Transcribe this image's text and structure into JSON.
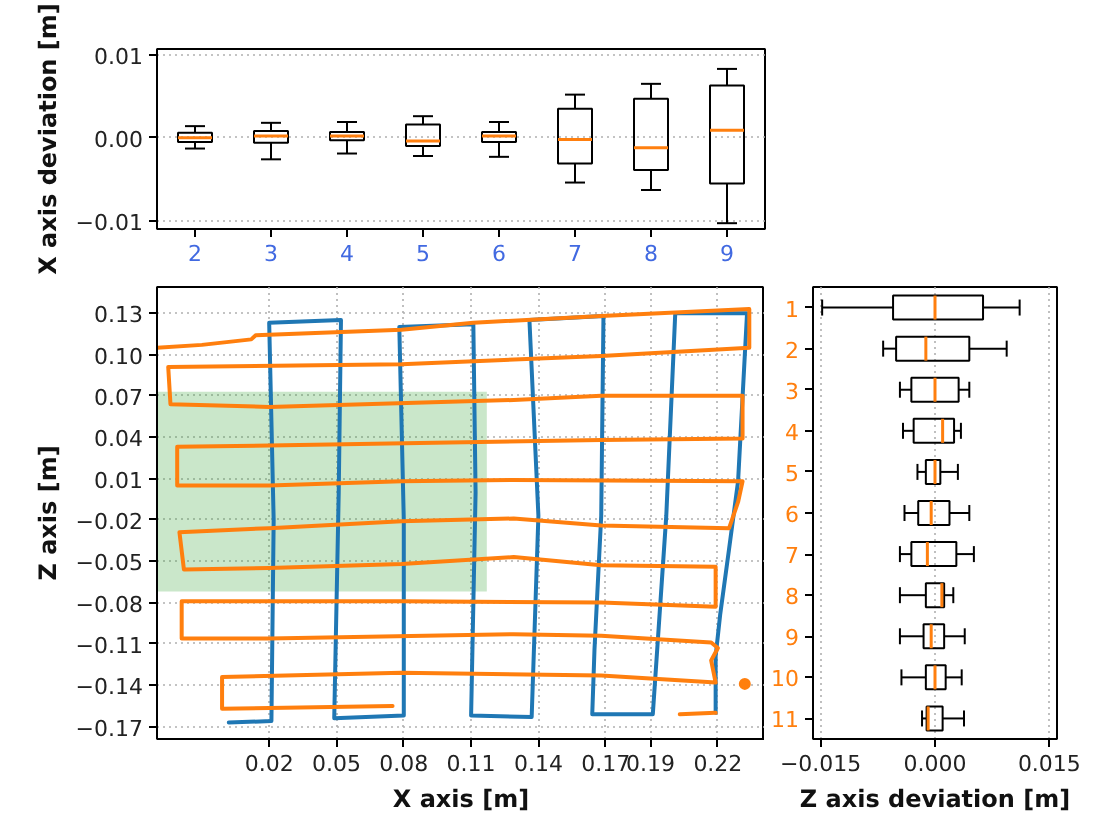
{
  "chart_data": [
    {
      "type": "box",
      "ylabel": "X axis deviation [m]",
      "color": "#000000",
      "categories": [
        "2",
        "3",
        "4",
        "5",
        "6",
        "7",
        "8",
        "9"
      ],
      "boxes": [
        {
          "low": -0.0013,
          "q1": -0.0005,
          "median": 0.0,
          "q3": 0.0006,
          "high": 0.0014
        },
        {
          "low": -0.0026,
          "q1": -0.0006,
          "median": 0.0002,
          "q3": 0.0008,
          "high": 0.0018
        },
        {
          "low": -0.0019,
          "q1": -0.0003,
          "median": 0.0002,
          "q3": 0.0007,
          "high": 0.0019
        },
        {
          "low": -0.0022,
          "q1": -0.001,
          "median": -0.0004,
          "q3": 0.0016,
          "high": 0.0026
        },
        {
          "low": -0.0023,
          "q1": -0.0005,
          "median": 0.0002,
          "q3": 0.0007,
          "high": 0.0019
        },
        {
          "low": -0.0054,
          "q1": -0.0031,
          "median": -0.0002,
          "q3": 0.0035,
          "high": 0.0052
        },
        {
          "low": -0.0063,
          "q1": -0.0039,
          "median": -0.0012,
          "q3": 0.0047,
          "high": 0.0065
        },
        {
          "low": -0.0103,
          "q1": -0.0055,
          "median": 0.0009,
          "q3": 0.0063,
          "high": 0.0083
        }
      ],
      "ylim": [
        -0.011,
        0.0107
      ],
      "yticks": [
        0.01,
        {
          "value": 0,
          "label": "0.00"
        },
        {
          "value": -0.01,
          "label": "−0.01"
        }
      ],
      "grid": "y"
    },
    {
      "type": "line",
      "xlabel": "X axis [m]",
      "ylabel": "Z axis [m]",
      "series": [
        {
          "color": "#1f77b4",
          "x": [
            0.002,
            0.021,
            0.022,
            0.02,
            0.052,
            0.051,
            0.049,
            0.08,
            0.08,
            0.078,
            0.111,
            0.112,
            0.11,
            0.137,
            0.14,
            0.136,
            0.169,
            0.168,
            0.165,
            0.164,
            0.191,
            0.197,
            0.201,
            0.233,
            0.229,
            0.225,
            0.221,
            0.219,
            0.219
          ],
          "values": [
            -0.167,
            -0.166,
            -0.02,
            0.123,
            0.125,
            0.0,
            -0.164,
            -0.162,
            -0.02,
            0.12,
            0.122,
            0.0,
            -0.162,
            -0.163,
            -0.017,
            0.125,
            0.128,
            -0.017,
            -0.114,
            -0.161,
            -0.161,
            -0.017,
            0.13,
            0.13,
            0.008,
            -0.041,
            -0.089,
            -0.119,
            -0.16
          ]
        },
        {
          "color": "#ff7f0e",
          "x": [
            -0.03,
            -0.01,
            0.012,
            0.014,
            0.079,
            0.111,
            0.168,
            0.234,
            0.234,
            0.168,
            0.079,
            -0.025,
            -0.024,
            0.02,
            0.129,
            0.168,
            0.231,
            0.231,
            0.168,
            0.02,
            -0.021,
            -0.021,
            0.02,
            0.079,
            0.129,
            0.231,
            0.229,
            0.225,
            0.168,
            0.129,
            0.079,
            0.02,
            -0.02,
            -0.018,
            0.02,
            0.079,
            0.129,
            0.168,
            0.219,
            0.219,
            0.168,
            0.079,
            -0.019,
            -0.019,
            0.02,
            0.129,
            0.168,
            0.217,
            0.22,
            0.217,
            0.219,
            0.168,
            0.079,
            -0.001,
            -0.001,
            0.075,
            0.138,
            0.203,
            0.219
          ],
          "values": [
            0.105,
            0.107,
            0.111,
            0.114,
            0.118,
            0.123,
            0.128,
            0.133,
            0.105,
            0.099,
            0.093,
            0.091,
            0.064,
            0.062,
            0.067,
            0.07,
            0.07,
            0.039,
            0.038,
            0.034,
            0.033,
            0.005,
            0.005,
            0.008,
            0.009,
            0.008,
            -0.007,
            -0.026,
            -0.024,
            -0.019,
            -0.021,
            -0.026,
            -0.029,
            -0.056,
            -0.055,
            -0.052,
            -0.047,
            -0.053,
            -0.054,
            -0.083,
            -0.08,
            -0.079,
            -0.079,
            -0.106,
            -0.106,
            -0.103,
            -0.104,
            -0.109,
            -0.113,
            -0.122,
            -0.138,
            -0.133,
            -0.131,
            -0.134,
            -0.157,
            -0.155,
            null,
            -0.161,
            -0.16
          ]
        },
        {
          "type": "scatter",
          "color": "#ff7f0e",
          "x": [
            0.232
          ],
          "values": [
            -0.139
          ]
        },
        {
          "type": "bar",
          "color": "#2ca02c",
          "x": [
            0.0435
          ],
          "base": [
            -0.072
          ],
          "values": [
            0.145
          ]
        }
      ],
      "xlim": [
        -0.03,
        0.241
      ],
      "xticks": [
        0.02,
        0.05,
        0.08,
        0.11,
        0.14,
        0.17,
        0.19,
        0.22
      ],
      "ylim": [
        -0.179,
        0.149
      ],
      "yticks": [
        0.13,
        {
          "value": 0.1,
          "label": "0.10"
        },
        0.07,
        0.04,
        0.01,
        {
          "value": -0.02,
          "label": "−0.02"
        },
        {
          "value": -0.05,
          "label": "−0.05"
        },
        {
          "value": -0.08,
          "label": "−0.08"
        },
        {
          "value": -0.11,
          "label": "−0.11"
        },
        {
          "value": -0.14,
          "label": "−0.14"
        },
        {
          "value": -0.17,
          "label": "−0.17"
        }
      ],
      "grid": true
    },
    {
      "type": "box",
      "orientation": "horizontal",
      "xlabel": "Z axis deviation [m]",
      "color": "#000000",
      "categories": [
        "1",
        "2",
        "3",
        "4",
        "5",
        "6",
        "7",
        "8",
        "9",
        "10",
        "11"
      ],
      "boxes": [
        {
          "low": -0.0148,
          "q1": -0.0055,
          "median": 0.0,
          "q3": 0.0063,
          "high": 0.0111
        },
        {
          "low": -0.0068,
          "q1": -0.0051,
          "median": -0.0012,
          "q3": 0.0045,
          "high": 0.0094
        },
        {
          "low": -0.0046,
          "q1": -0.0031,
          "median": 0.0,
          "q3": 0.0031,
          "high": 0.0045
        },
        {
          "low": -0.0042,
          "q1": -0.0028,
          "median": 0.001,
          "q3": 0.0025,
          "high": 0.0034
        },
        {
          "low": -0.0023,
          "q1": -0.0012,
          "median": 0.0,
          "q3": 0.0007,
          "high": 0.003
        },
        {
          "low": -0.004,
          "q1": -0.0022,
          "median": -0.0005,
          "q3": 0.0019,
          "high": 0.0045
        },
        {
          "low": -0.0046,
          "q1": -0.0031,
          "median": -0.001,
          "q3": 0.0028,
          "high": 0.0051
        },
        {
          "low": -0.0046,
          "q1": -0.0012,
          "median": 0.0009,
          "q3": 0.0012,
          "high": 0.0024
        },
        {
          "low": -0.0046,
          "q1": -0.0015,
          "median": -0.0005,
          "q3": 0.0012,
          "high": 0.0039
        },
        {
          "low": -0.0044,
          "q1": -0.0012,
          "median": 0.0,
          "q3": 0.0014,
          "high": 0.0035
        },
        {
          "low": -0.0017,
          "q1": -0.0011,
          "median": -0.0009,
          "q3": 0.001,
          "high": 0.0038
        }
      ],
      "xlim": [
        -0.016,
        0.016
      ],
      "xticks": [
        {
          "value": -0.015,
          "label": "−0.015"
        },
        {
          "value": 0,
          "label": "0.000"
        },
        0.015
      ],
      "grid": "x"
    }
  ]
}
